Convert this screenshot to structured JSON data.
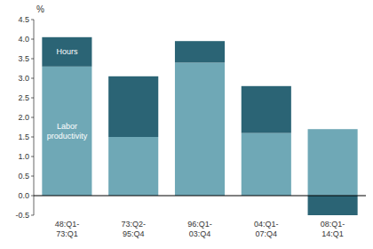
{
  "chart_data": {
    "type": "bar",
    "stacked": true,
    "ylabel": "%",
    "categories": [
      "48:Q1-\n73:Q1",
      "73:Q2-\n95:Q4",
      "96:Q1-\n03:Q4",
      "04:Q1-\n07:Q4",
      "08:Q1-\n14:Q1"
    ],
    "series": [
      {
        "name": "Labor\nproductivity",
        "color": "#6fa8b6",
        "values": [
          3.3,
          1.5,
          3.4,
          1.6,
          1.7
        ]
      },
      {
        "name": "Hours",
        "color": "#2b6475",
        "values": [
          0.75,
          1.55,
          0.55,
          1.2,
          -0.5
        ]
      }
    ],
    "ylim": [
      -0.5,
      4.5
    ],
    "yticks": [
      -0.5,
      {
        "value": 0,
        "label": "0.0"
      },
      0.5,
      {
        "value": 1,
        "label": "1.0"
      },
      1.5,
      {
        "value": 2,
        "label": "2.0"
      },
      2.5,
      {
        "value": 3,
        "label": "3.0"
      },
      3.5,
      {
        "value": 4,
        "label": "4.0"
      },
      4.5
    ],
    "grid": false
  }
}
